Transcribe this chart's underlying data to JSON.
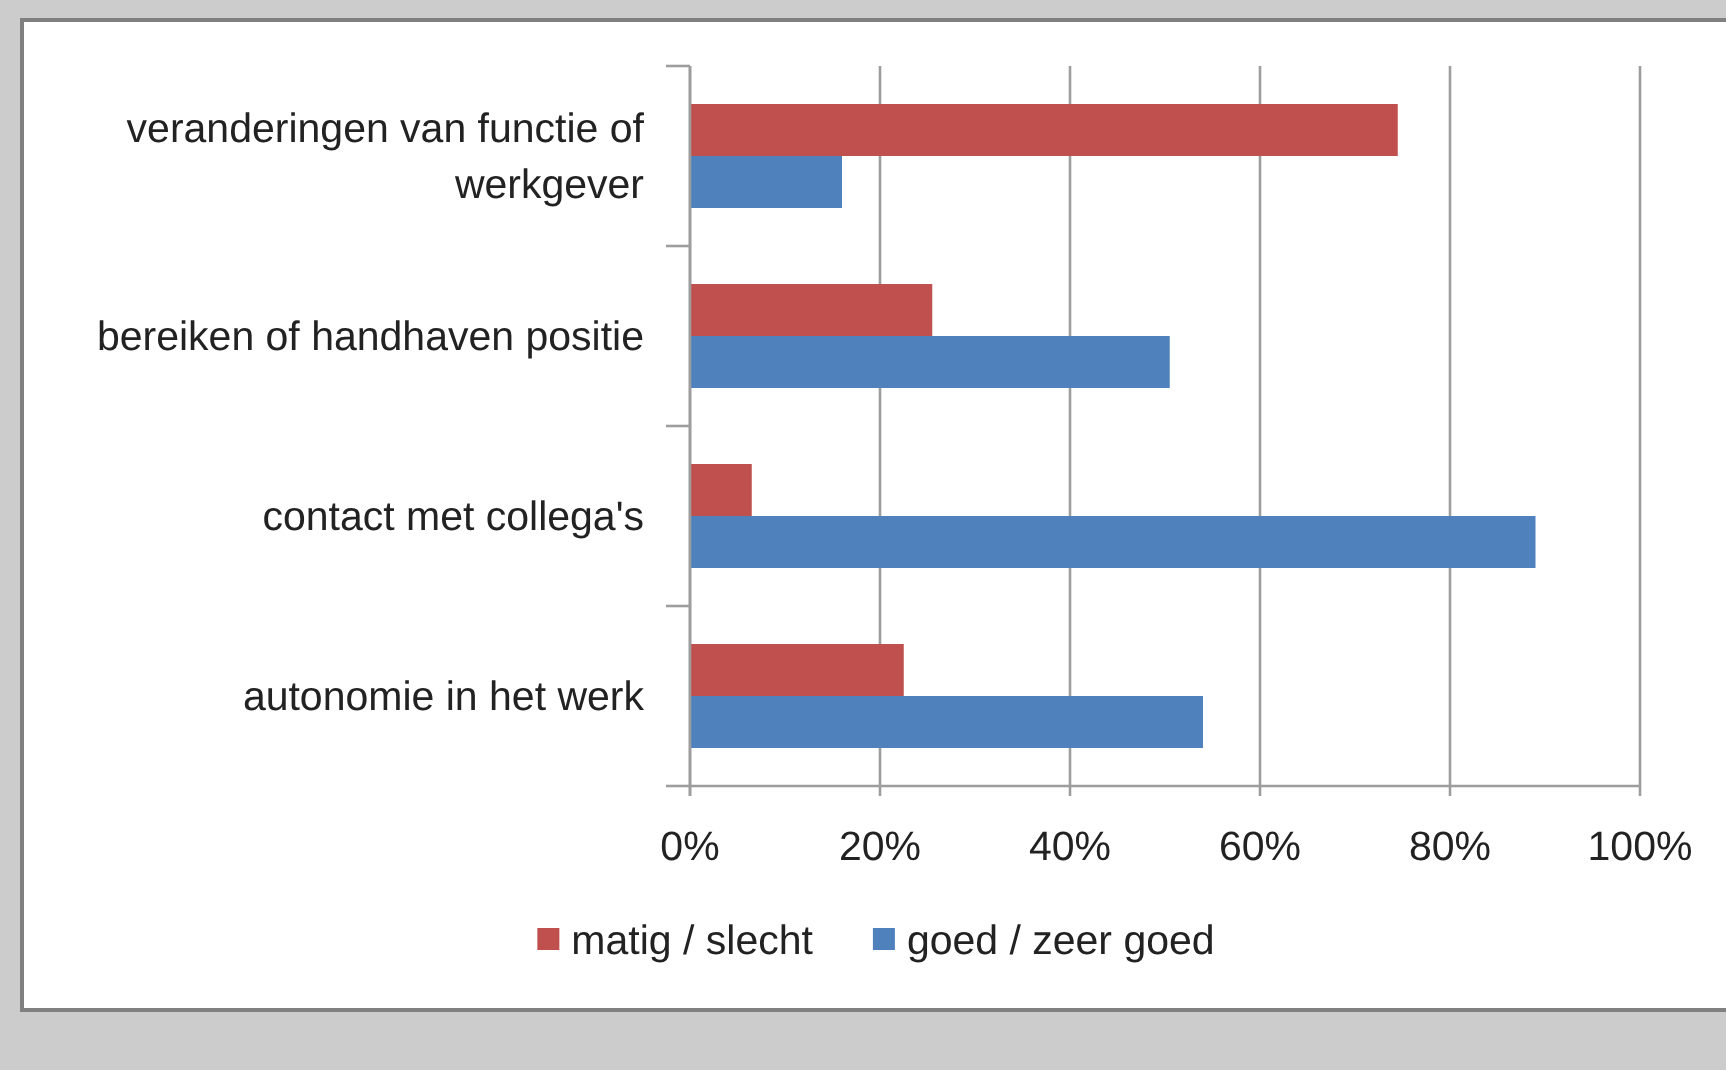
{
  "chart_data": {
    "type": "bar",
    "orientation": "horizontal",
    "categories": [
      "veranderingen van functie of werkgever",
      "bereiken of handhaven positie",
      "contact met collega's",
      "autonomie in het werk"
    ],
    "series": [
      {
        "name": "matig / slecht",
        "color": "#c0504d",
        "values": [
          74.5,
          25.5,
          6.5,
          22.5
        ]
      },
      {
        "name": "goed / zeer goed",
        "color": "#4f81bd",
        "values": [
          16,
          50.5,
          89,
          54
        ]
      }
    ],
    "xlim": [
      0,
      100
    ],
    "xticks": [
      {
        "value": 0,
        "label": "0%"
      },
      {
        "value": 20,
        "label": "20%"
      },
      {
        "value": 40,
        "label": "40%"
      },
      {
        "value": 60,
        "label": "60%"
      },
      {
        "value": 80,
        "label": "80%"
      },
      {
        "value": 100,
        "label": "100%"
      }
    ],
    "grid": "x",
    "legend": "bottom"
  }
}
